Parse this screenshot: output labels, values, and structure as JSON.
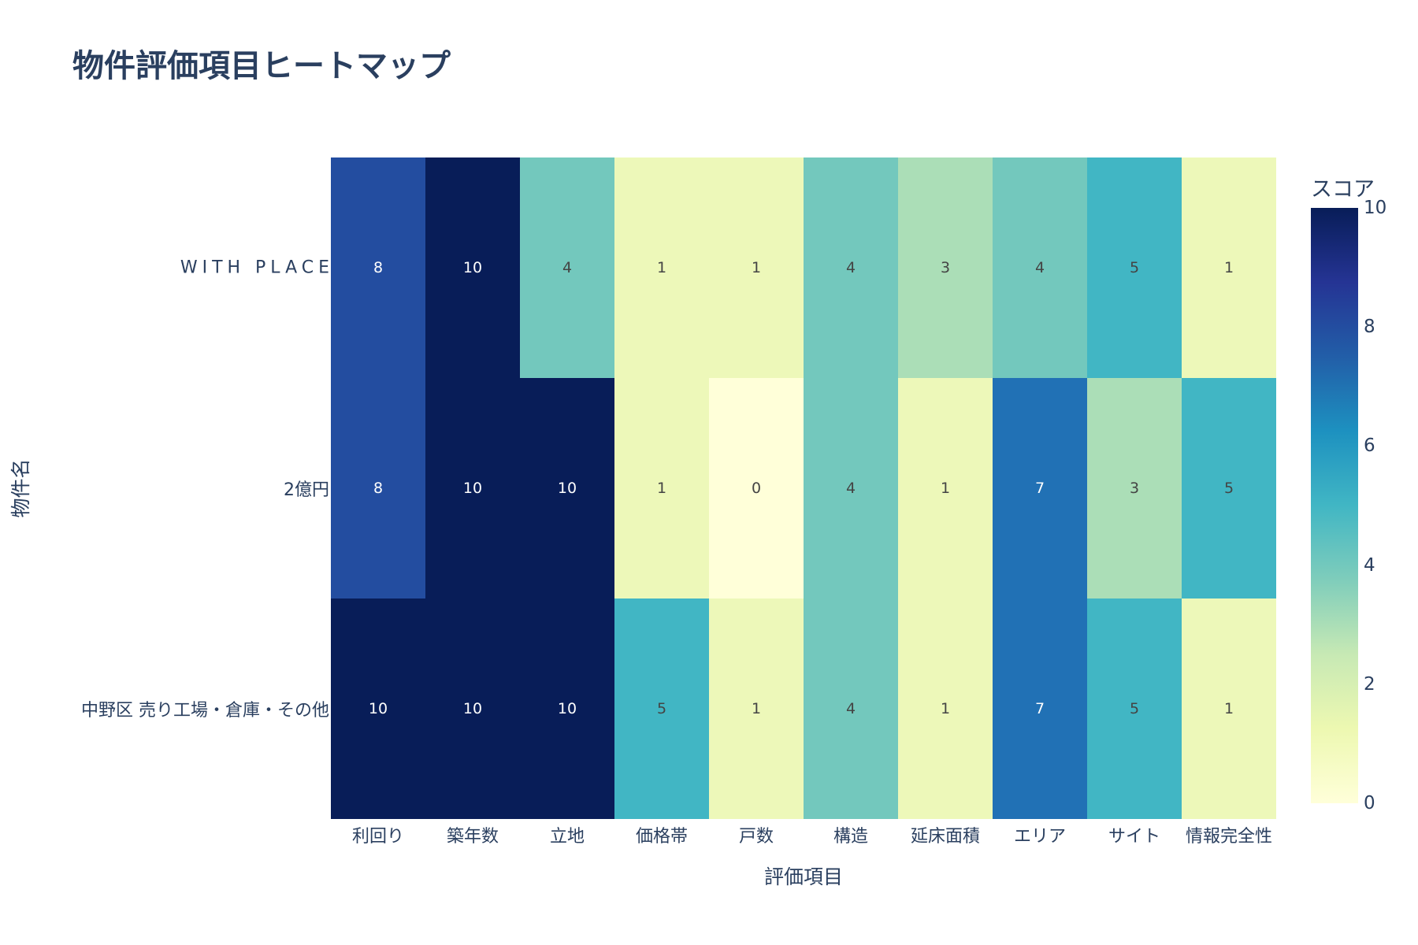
{
  "title": "物件評価項目ヒートマップ",
  "x_axis": {
    "title": "評価項目",
    "ticks": [
      "利回り",
      "築年数",
      "立地",
      "価格帯",
      "戸数",
      "構造",
      "延床面積",
      "エリア",
      "サイト",
      "情報完全性"
    ]
  },
  "y_axis": {
    "title": "物件名",
    "ticks": [
      "WITH PLACE",
      "2億円",
      "中野区 売り工場・倉庫・その他"
    ]
  },
  "colorbar": {
    "title": "スコア",
    "ticks": [
      "10",
      "8",
      "6",
      "4",
      "2",
      "0"
    ],
    "colorscale": "YlGnBu",
    "colors": {
      "0": "#ffffd9",
      "1": "#edf8b9",
      "3": "#abdeb7",
      "4": "#73c8bd",
      "5": "#41b6c4",
      "7": "#2171b5",
      "8": "#234da0",
      "10": "#081d58"
    }
  },
  "chart_data": {
    "type": "heatmap",
    "title": "物件評価項目ヒートマップ",
    "xlabel": "評価項目",
    "ylabel": "物件名",
    "x": [
      "利回り",
      "築年数",
      "立地",
      "価格帯",
      "戸数",
      "構造",
      "延床面積",
      "エリア",
      "サイト",
      "情報完全性"
    ],
    "y": [
      "WITH PLACE",
      "2億円",
      "中野区 売り工場・倉庫・その他"
    ],
    "z": [
      [
        8,
        10,
        4,
        1,
        1,
        4,
        3,
        4,
        5,
        1
      ],
      [
        8,
        10,
        10,
        1,
        0,
        4,
        1,
        7,
        3,
        5
      ],
      [
        10,
        10,
        10,
        5,
        1,
        4,
        1,
        7,
        5,
        1
      ]
    ],
    "zlim": [
      0,
      10
    ],
    "colorbar_title": "スコア",
    "colorscale": "YlGnBu",
    "text_labels": true
  }
}
